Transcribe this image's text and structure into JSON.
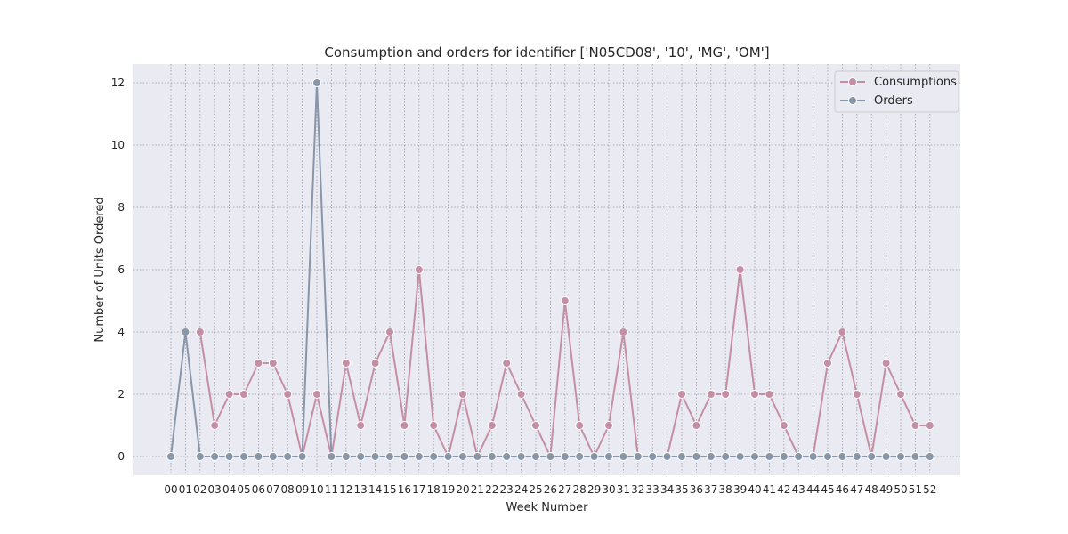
{
  "chart_data": {
    "type": "line",
    "title": "Consumption and orders for identifier ['N05CD08', '10', 'MG', 'OM']",
    "xlabel": "Week Number",
    "ylabel": "Number of Units Ordered",
    "categories": [
      "00",
      "01",
      "02",
      "03",
      "04",
      "05",
      "06",
      "07",
      "08",
      "09",
      "10",
      "11",
      "12",
      "13",
      "14",
      "15",
      "16",
      "17",
      "18",
      "19",
      "20",
      "21",
      "22",
      "23",
      "24",
      "25",
      "26",
      "27",
      "28",
      "29",
      "30",
      "31",
      "32",
      "33",
      "34",
      "35",
      "36",
      "37",
      "38",
      "39",
      "40",
      "41",
      "42",
      "43",
      "44",
      "45",
      "46",
      "47",
      "48",
      "49",
      "50",
      "51",
      "52"
    ],
    "ylim": [
      -0.6,
      12.6
    ],
    "yticks": [
      0,
      2,
      4,
      6,
      8,
      10,
      12
    ],
    "grid": true,
    "legend_position": "top-right",
    "series": [
      {
        "name": "Consumptions",
        "color": "#c48fa4",
        "values": [
          null,
          null,
          4,
          1,
          2,
          2,
          3,
          3,
          2,
          0,
          2,
          0,
          3,
          1,
          3,
          4,
          1,
          6,
          1,
          0,
          2,
          0,
          1,
          3,
          2,
          1,
          0,
          5,
          1,
          0,
          1,
          4,
          0,
          0,
          0,
          2,
          1,
          2,
          2,
          6,
          2,
          2,
          1,
          0,
          0,
          3,
          4,
          2,
          0,
          3,
          2,
          1,
          1
        ]
      },
      {
        "name": "Orders",
        "color": "#8896aa",
        "values": [
          0,
          4,
          0,
          0,
          0,
          0,
          0,
          0,
          0,
          0,
          12,
          0,
          0,
          0,
          0,
          0,
          0,
          0,
          0,
          0,
          0,
          0,
          0,
          0,
          0,
          0,
          0,
          0,
          0,
          0,
          0,
          0,
          0,
          0,
          0,
          0,
          0,
          0,
          0,
          0,
          0,
          0,
          0,
          0,
          0,
          0,
          0,
          0,
          0,
          0,
          0,
          0,
          0
        ]
      }
    ]
  }
}
